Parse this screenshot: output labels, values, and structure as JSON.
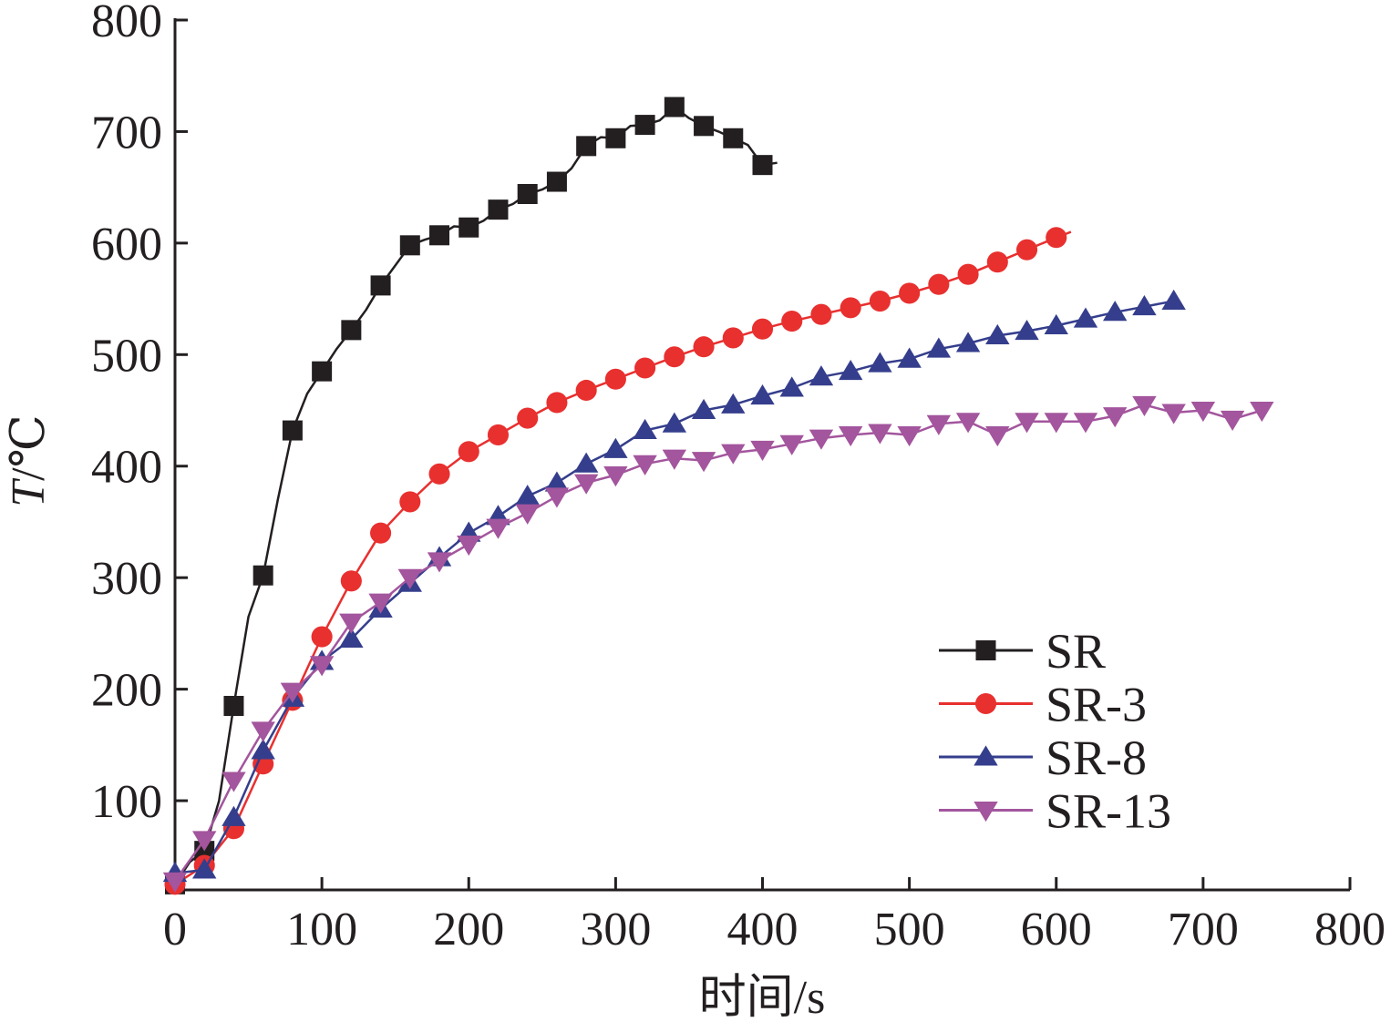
{
  "chart_data": {
    "type": "line",
    "xlabel": "时间/s",
    "ylabel": "T/℃",
    "ylabel_italic": "T",
    "ylabel_rest": "/℃",
    "xlim": [
      0,
      800
    ],
    "ylim": [
      20,
      800
    ],
    "x_ticks": [
      0,
      100,
      200,
      300,
      400,
      500,
      600,
      700,
      800
    ],
    "y_ticks": [
      100,
      200,
      300,
      400,
      500,
      600,
      700,
      800
    ],
    "grid": false,
    "legend_position": "lower-right",
    "series": [
      {
        "name": "SR",
        "color": "#231f20",
        "marker": "square",
        "points": [
          [
            0,
            25
          ],
          [
            10,
            45
          ],
          [
            20,
            55
          ],
          [
            30,
            100
          ],
          [
            40,
            185
          ],
          [
            50,
            265
          ],
          [
            60,
            302
          ],
          [
            70,
            370
          ],
          [
            80,
            432
          ],
          [
            90,
            465
          ],
          [
            100,
            485
          ],
          [
            110,
            505
          ],
          [
            120,
            522
          ],
          [
            130,
            540
          ],
          [
            140,
            562
          ],
          [
            150,
            580
          ],
          [
            160,
            598
          ],
          [
            170,
            603
          ],
          [
            180,
            607
          ],
          [
            190,
            615
          ],
          [
            200,
            614
          ],
          [
            210,
            620
          ],
          [
            220,
            630
          ],
          [
            230,
            635
          ],
          [
            240,
            644
          ],
          [
            250,
            648
          ],
          [
            260,
            655
          ],
          [
            270,
            667
          ],
          [
            280,
            687
          ],
          [
            290,
            695
          ],
          [
            300,
            694
          ],
          [
            310,
            705
          ],
          [
            320,
            706
          ],
          [
            330,
            710
          ],
          [
            340,
            722
          ],
          [
            350,
            712
          ],
          [
            360,
            705
          ],
          [
            370,
            700
          ],
          [
            380,
            694
          ],
          [
            390,
            688
          ],
          [
            400,
            670
          ],
          [
            410,
            672
          ]
        ],
        "markers": [
          [
            0,
            25
          ],
          [
            20,
            55
          ],
          [
            40,
            185
          ],
          [
            60,
            302
          ],
          [
            80,
            432
          ],
          [
            100,
            485
          ],
          [
            120,
            522
          ],
          [
            140,
            562
          ],
          [
            160,
            598
          ],
          [
            180,
            607
          ],
          [
            200,
            614
          ],
          [
            220,
            630
          ],
          [
            240,
            644
          ],
          [
            260,
            655
          ],
          [
            280,
            687
          ],
          [
            300,
            694
          ],
          [
            320,
            706
          ],
          [
            340,
            722
          ],
          [
            360,
            705
          ],
          [
            380,
            694
          ],
          [
            400,
            670
          ]
        ]
      },
      {
        "name": "SR-3",
        "color": "#e8302f",
        "marker": "circle",
        "points": [
          [
            0,
            25
          ],
          [
            20,
            42
          ],
          [
            40,
            75
          ],
          [
            60,
            133
          ],
          [
            80,
            190
          ],
          [
            100,
            247
          ],
          [
            120,
            297
          ],
          [
            140,
            340
          ],
          [
            160,
            368
          ],
          [
            180,
            393
          ],
          [
            200,
            413
          ],
          [
            220,
            428
          ],
          [
            240,
            443
          ],
          [
            260,
            457
          ],
          [
            280,
            468
          ],
          [
            300,
            478
          ],
          [
            320,
            488
          ],
          [
            340,
            498
          ],
          [
            360,
            507
          ],
          [
            380,
            515
          ],
          [
            400,
            523
          ],
          [
            420,
            530
          ],
          [
            440,
            536
          ],
          [
            460,
            542
          ],
          [
            480,
            548
          ],
          [
            500,
            555
          ],
          [
            520,
            563
          ],
          [
            540,
            572
          ],
          [
            560,
            583
          ],
          [
            580,
            594
          ],
          [
            600,
            605
          ],
          [
            610,
            610
          ]
        ],
        "markers": [
          [
            0,
            25
          ],
          [
            20,
            42
          ],
          [
            40,
            75
          ],
          [
            60,
            133
          ],
          [
            80,
            190
          ],
          [
            100,
            247
          ],
          [
            120,
            297
          ],
          [
            140,
            340
          ],
          [
            160,
            368
          ],
          [
            180,
            393
          ],
          [
            200,
            413
          ],
          [
            220,
            428
          ],
          [
            240,
            443
          ],
          [
            260,
            457
          ],
          [
            280,
            468
          ],
          [
            300,
            478
          ],
          [
            320,
            488
          ],
          [
            340,
            498
          ],
          [
            360,
            507
          ],
          [
            380,
            515
          ],
          [
            400,
            523
          ],
          [
            420,
            530
          ],
          [
            440,
            536
          ],
          [
            460,
            542
          ],
          [
            480,
            548
          ],
          [
            500,
            555
          ],
          [
            520,
            563
          ],
          [
            540,
            572
          ],
          [
            560,
            583
          ],
          [
            580,
            594
          ],
          [
            600,
            605
          ]
        ]
      },
      {
        "name": "SR-8",
        "color": "#353e8c",
        "marker": "triangle-up",
        "points": [
          [
            0,
            35
          ],
          [
            20,
            38
          ],
          [
            40,
            85
          ],
          [
            60,
            145
          ],
          [
            80,
            192
          ],
          [
            100,
            225
          ],
          [
            120,
            245
          ],
          [
            140,
            272
          ],
          [
            160,
            295
          ],
          [
            180,
            318
          ],
          [
            200,
            340
          ],
          [
            220,
            355
          ],
          [
            240,
            373
          ],
          [
            260,
            385
          ],
          [
            280,
            402
          ],
          [
            300,
            415
          ],
          [
            320,
            432
          ],
          [
            340,
            438
          ],
          [
            360,
            450
          ],
          [
            380,
            455
          ],
          [
            400,
            463
          ],
          [
            420,
            470
          ],
          [
            440,
            480
          ],
          [
            460,
            485
          ],
          [
            480,
            492
          ],
          [
            500,
            496
          ],
          [
            520,
            505
          ],
          [
            540,
            510
          ],
          [
            560,
            517
          ],
          [
            580,
            521
          ],
          [
            600,
            526
          ],
          [
            620,
            532
          ],
          [
            640,
            538
          ],
          [
            660,
            543
          ],
          [
            680,
            548
          ]
        ],
        "markers": [
          [
            0,
            35
          ],
          [
            20,
            38
          ],
          [
            40,
            85
          ],
          [
            60,
            145
          ],
          [
            80,
            192
          ],
          [
            100,
            225
          ],
          [
            120,
            245
          ],
          [
            140,
            272
          ],
          [
            160,
            295
          ],
          [
            180,
            318
          ],
          [
            200,
            340
          ],
          [
            220,
            355
          ],
          [
            240,
            373
          ],
          [
            260,
            385
          ],
          [
            280,
            402
          ],
          [
            300,
            415
          ],
          [
            320,
            432
          ],
          [
            340,
            438
          ],
          [
            360,
            450
          ],
          [
            380,
            455
          ],
          [
            400,
            463
          ],
          [
            420,
            470
          ],
          [
            440,
            480
          ],
          [
            460,
            485
          ],
          [
            480,
            492
          ],
          [
            500,
            496
          ],
          [
            520,
            505
          ],
          [
            540,
            510
          ],
          [
            560,
            517
          ],
          [
            580,
            521
          ],
          [
            600,
            526
          ],
          [
            620,
            532
          ],
          [
            640,
            538
          ],
          [
            660,
            543
          ],
          [
            680,
            548
          ]
        ]
      },
      {
        "name": "SR-13",
        "color": "#a3559d",
        "marker": "triangle-down",
        "points": [
          [
            0,
            28
          ],
          [
            20,
            65
          ],
          [
            40,
            118
          ],
          [
            60,
            163
          ],
          [
            80,
            198
          ],
          [
            100,
            222
          ],
          [
            120,
            260
          ],
          [
            140,
            278
          ],
          [
            160,
            300
          ],
          [
            180,
            315
          ],
          [
            200,
            330
          ],
          [
            220,
            345
          ],
          [
            240,
            358
          ],
          [
            260,
            373
          ],
          [
            280,
            385
          ],
          [
            300,
            392
          ],
          [
            320,
            402
          ],
          [
            340,
            407
          ],
          [
            360,
            405
          ],
          [
            380,
            412
          ],
          [
            400,
            415
          ],
          [
            420,
            420
          ],
          [
            440,
            425
          ],
          [
            460,
            428
          ],
          [
            480,
            430
          ],
          [
            500,
            428
          ],
          [
            520,
            438
          ],
          [
            540,
            440
          ],
          [
            560,
            428
          ],
          [
            580,
            440
          ],
          [
            600,
            440
          ],
          [
            620,
            440
          ],
          [
            640,
            445
          ],
          [
            660,
            455
          ],
          [
            680,
            448
          ],
          [
            700,
            450
          ],
          [
            720,
            442
          ],
          [
            740,
            450
          ]
        ],
        "markers": [
          [
            0,
            28
          ],
          [
            20,
            65
          ],
          [
            40,
            118
          ],
          [
            60,
            163
          ],
          [
            80,
            198
          ],
          [
            100,
            222
          ],
          [
            120,
            260
          ],
          [
            140,
            278
          ],
          [
            160,
            300
          ],
          [
            180,
            315
          ],
          [
            200,
            330
          ],
          [
            220,
            345
          ],
          [
            240,
            358
          ],
          [
            260,
            373
          ],
          [
            280,
            385
          ],
          [
            300,
            392
          ],
          [
            320,
            402
          ],
          [
            340,
            407
          ],
          [
            360,
            405
          ],
          [
            380,
            412
          ],
          [
            400,
            415
          ],
          [
            420,
            420
          ],
          [
            440,
            425
          ],
          [
            460,
            428
          ],
          [
            480,
            430
          ],
          [
            500,
            428
          ],
          [
            520,
            438
          ],
          [
            540,
            440
          ],
          [
            560,
            428
          ],
          [
            580,
            440
          ],
          [
            600,
            440
          ],
          [
            620,
            440
          ],
          [
            640,
            445
          ],
          [
            660,
            455
          ],
          [
            680,
            448
          ],
          [
            700,
            450
          ],
          [
            720,
            442
          ],
          [
            740,
            450
          ]
        ]
      }
    ]
  }
}
